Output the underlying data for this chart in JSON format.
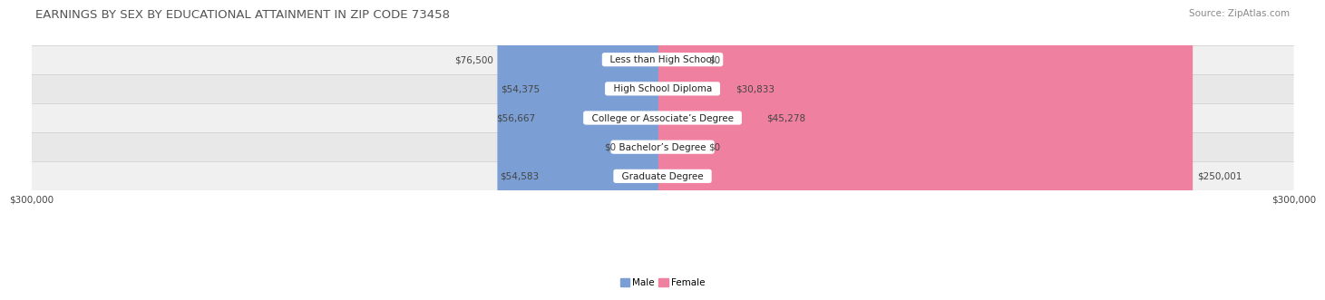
{
  "title": "EARNINGS BY SEX BY EDUCATIONAL ATTAINMENT IN ZIP CODE 73458",
  "source": "Source: ZipAtlas.com",
  "categories": [
    "Less than High School",
    "High School Diploma",
    "College or Associate’s Degree",
    "Bachelor’s Degree",
    "Graduate Degree"
  ],
  "male_values": [
    76500,
    54375,
    56667,
    0,
    54583
  ],
  "female_values": [
    0,
    30833,
    45278,
    0,
    250001
  ],
  "male_color": "#7B9FD4",
  "female_color": "#F080A0",
  "male_color_zero": "#B8CCE8",
  "female_color_zero": "#F8B8CC",
  "row_bg_odd": "#F0F0F0",
  "row_bg_even": "#E8E8E8",
  "x_min": -300000,
  "x_max": 300000,
  "x_tick_labels": [
    "$300,000",
    "$300,000"
  ],
  "title_fontsize": 9.5,
  "source_fontsize": 7.5,
  "label_fontsize": 7.5,
  "category_fontsize": 7.5,
  "legend_fontsize": 7.5,
  "background_color": "#FFFFFF"
}
